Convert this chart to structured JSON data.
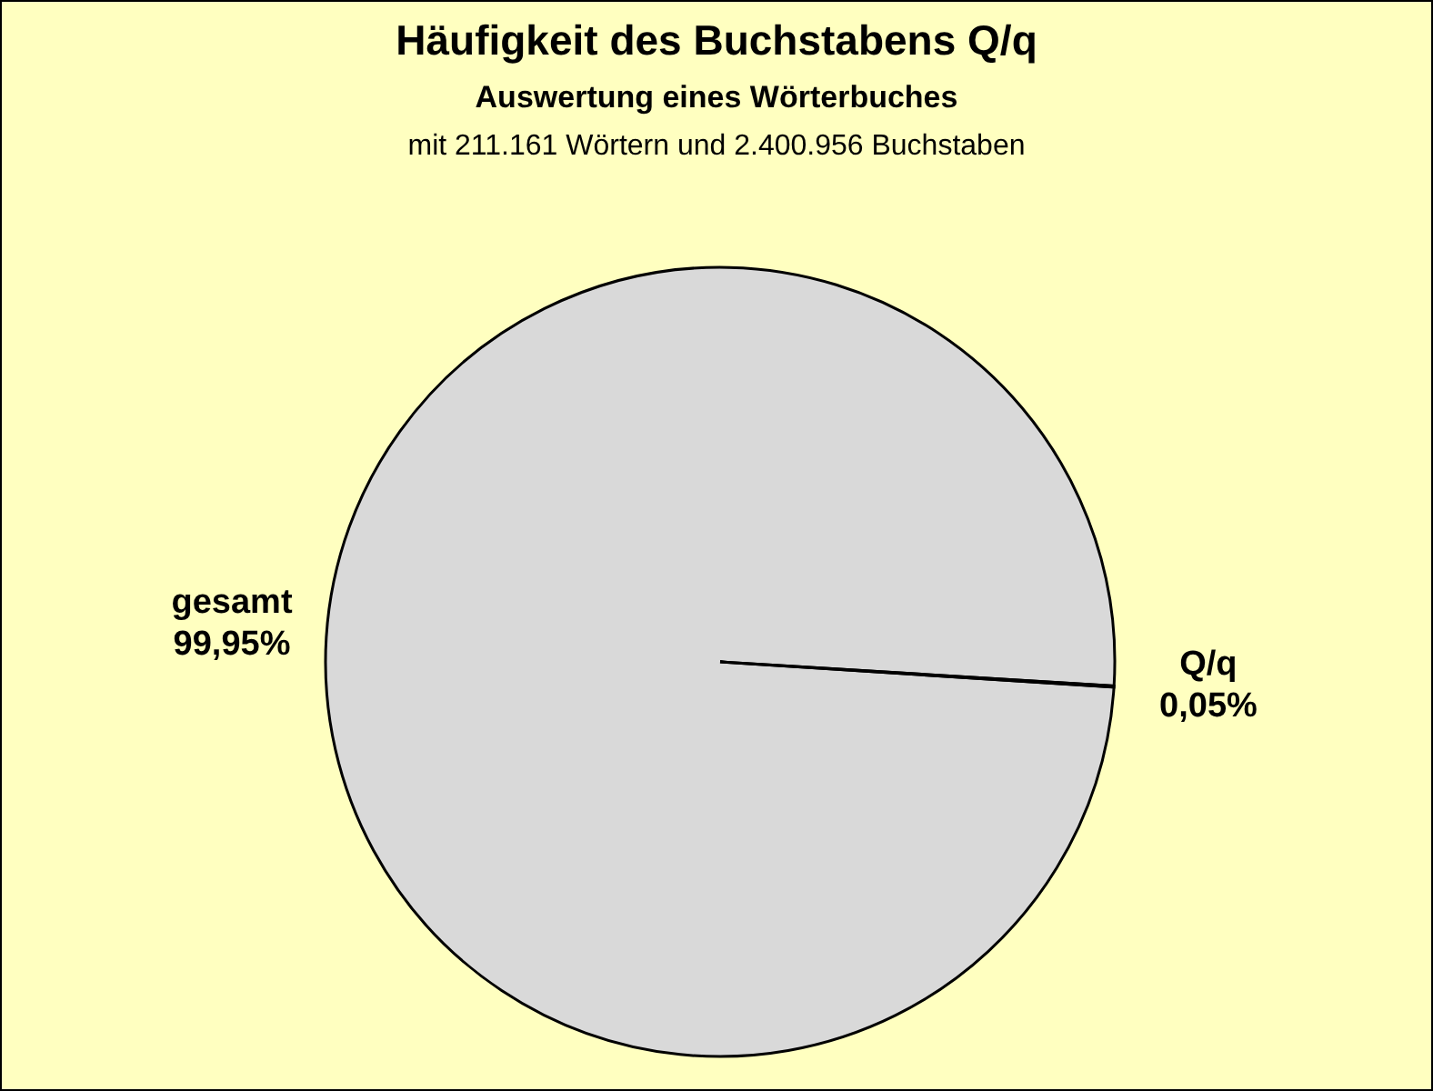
{
  "chart_data": {
    "type": "pie",
    "title": "Häufigkeit des Buchstabens Q/q",
    "subtitle": "Auswertung eines Wörterbuches",
    "annotations": [
      "mit 211.161 Wörtern und 2.400.956 Buchstaben"
    ],
    "categories": [
      "gesamt",
      "Q/q"
    ],
    "values": [
      99.95,
      0.05
    ],
    "colors": [
      "#d9d9d9",
      "#d9d9d9"
    ],
    "value_labels": [
      "99,95%",
      "0,05%"
    ]
  }
}
